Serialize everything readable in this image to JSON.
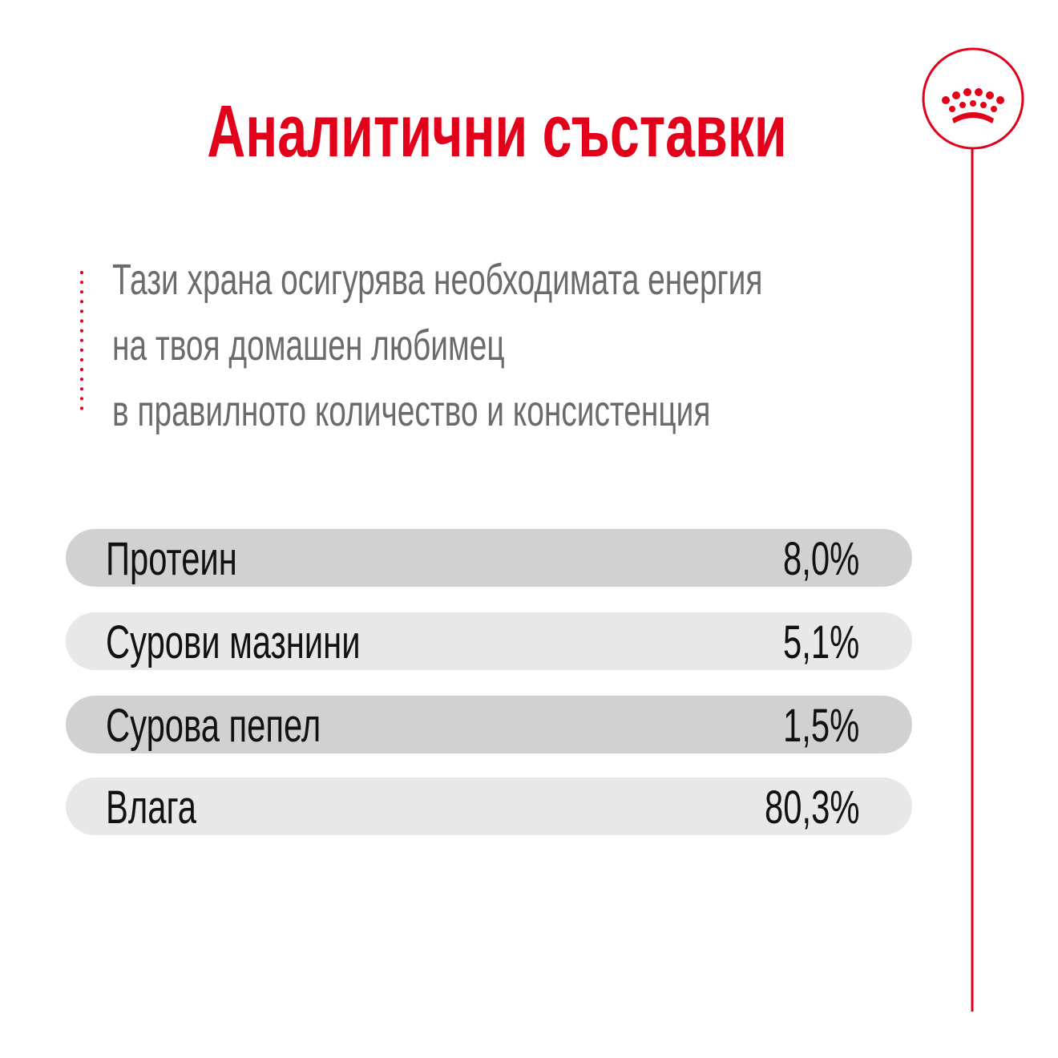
{
  "header": {
    "title": "Аналитични съставки"
  },
  "description": {
    "lines": [
      "Тази храна осигурява необходимата енергия",
      "на твоя домашен любимец",
      "в правилното количество и консистенция"
    ]
  },
  "table": {
    "rows": [
      [
        "Протеин",
        "8,0%"
      ],
      [
        "Сурови мазнини",
        "5,1%"
      ],
      [
        "Сурова пепел",
        "1,5%"
      ],
      [
        "Влага",
        "80,3%"
      ]
    ]
  }
}
